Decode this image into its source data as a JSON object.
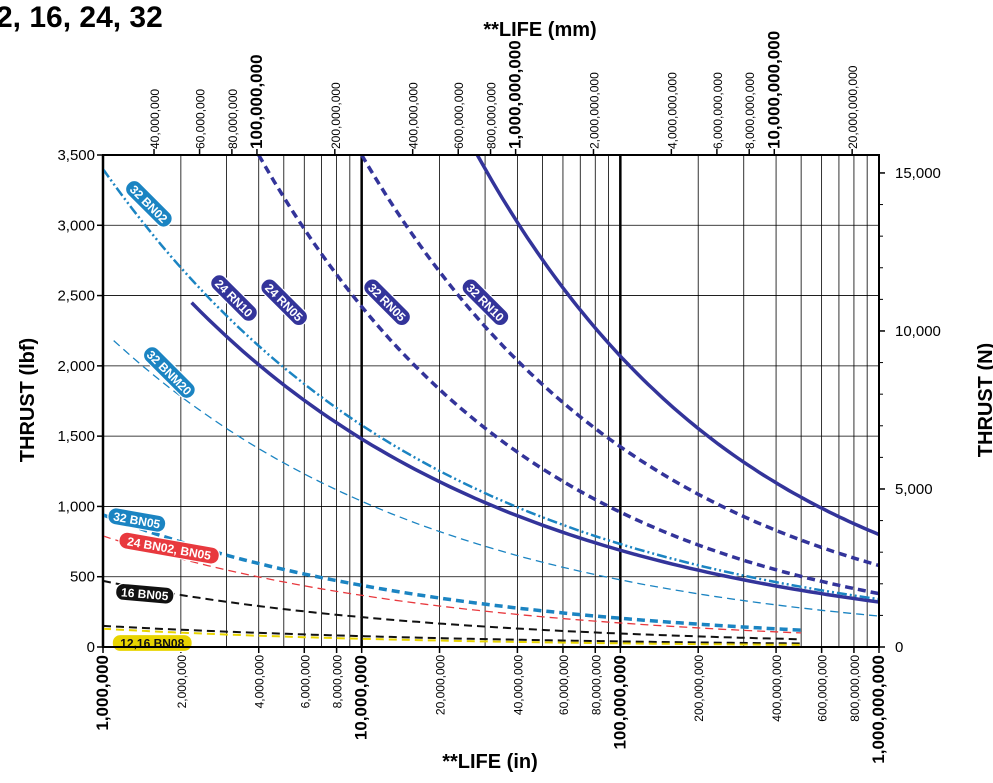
{
  "title": "2, 16, 24, 32",
  "chart_data": {
    "type": "line",
    "xlabel_bottom": "**LIFE (in)",
    "xlabel_top": "**LIFE (mm)",
    "ylabel_left": "THRUST (lbf)",
    "ylabel_right": "THRUST (N)",
    "x_scale": "log",
    "xlim": [
      1000000,
      1000000000
    ],
    "ylim": [
      0,
      3500
    ],
    "grid": true,
    "bottom_ticks": [
      {
        "value": 1000000,
        "label": "1,000,000",
        "major": true
      },
      {
        "value": 2000000,
        "label": "2,000,000",
        "major": false
      },
      {
        "value": 4000000,
        "label": "4,000,000",
        "major": false
      },
      {
        "value": 6000000,
        "label": "6,000,000",
        "major": false
      },
      {
        "value": 8000000,
        "label": "8,000,000",
        "major": false
      },
      {
        "value": 10000000,
        "label": "10,000,000",
        "major": true
      },
      {
        "value": 20000000,
        "label": "20,000,000",
        "major": false
      },
      {
        "value": 40000000,
        "label": "40,000,000",
        "major": false
      },
      {
        "value": 60000000,
        "label": "60,000,000",
        "major": false
      },
      {
        "value": 80000000,
        "label": "80,000,000",
        "major": false
      },
      {
        "value": 100000000,
        "label": "100,000,000",
        "major": true
      },
      {
        "value": 200000000,
        "label": "200,000,000",
        "major": false
      },
      {
        "value": 400000000,
        "label": "400,000,000",
        "major": false
      },
      {
        "value": 600000000,
        "label": "600,000,000",
        "major": false
      },
      {
        "value": 800000000,
        "label": "800,000,000",
        "major": false
      },
      {
        "value": 1000000000,
        "label": "1,000,000,000",
        "major": true
      }
    ],
    "top_ticks": [
      {
        "value": 40000000,
        "label": "40,000,000",
        "major": false
      },
      {
        "value": 60000000,
        "label": "60,000,000",
        "major": false
      },
      {
        "value": 80000000,
        "label": "80,000,000",
        "major": false
      },
      {
        "value": 100000000,
        "label": "100,000,000",
        "major": true
      },
      {
        "value": 200000000,
        "label": "200,000,000",
        "major": false
      },
      {
        "value": 400000000,
        "label": "400,000,000",
        "major": false
      },
      {
        "value": 600000000,
        "label": "600,000,000",
        "major": false
      },
      {
        "value": 800000000,
        "label": "800,000,000",
        "major": false
      },
      {
        "value": 1000000000,
        "label": "1,000,000,000",
        "major": true
      },
      {
        "value": 2000000000,
        "label": "2,000,000,000",
        "major": false
      },
      {
        "value": 4000000000,
        "label": "4,000,000,000",
        "major": false
      },
      {
        "value": 6000000000,
        "label": "6,000,000,000",
        "major": false
      },
      {
        "value": 8000000000,
        "label": "8,000,000,000",
        "major": false
      },
      {
        "value": 10000000000,
        "label": "10,000,000,000",
        "major": true
      },
      {
        "value": 20000000000,
        "label": "20,000,000,000",
        "major": false
      }
    ],
    "left_ticks": [
      {
        "value": 0,
        "label": "0"
      },
      {
        "value": 500,
        "label": "500"
      },
      {
        "value": 1000,
        "label": "1,000"
      },
      {
        "value": 1500,
        "label": "1,500"
      },
      {
        "value": 2000,
        "label": "2,000"
      },
      {
        "value": 2500,
        "label": "2,500"
      },
      {
        "value": 3000,
        "label": "3,000"
      },
      {
        "value": 3500,
        "label": "3,500"
      }
    ],
    "right_ticks": [
      {
        "value": 0,
        "label": "0"
      },
      {
        "value": 5000,
        "label": "5,000"
      },
      {
        "value": 10000,
        "label": "10,000"
      },
      {
        "value": 15000,
        "label": "15,000"
      }
    ],
    "series": [
      {
        "name": "32 RN10",
        "color": "#33349a",
        "style": "solid",
        "width": 3.5,
        "x": [
          28000000,
          1000000000
        ],
        "y": [
          3500,
          800
        ]
      },
      {
        "name": "32 RN05",
        "color": "#33349a",
        "style": "dash",
        "width": 3.5,
        "x": [
          10000000,
          1000000000
        ],
        "y": [
          3500,
          580
        ]
      },
      {
        "name": "24 RN05",
        "color": "#33349a",
        "style": "dash",
        "width": 3.5,
        "x": [
          4000000,
          1000000000
        ],
        "y": [
          3500,
          380
        ]
      },
      {
        "name": "24 RN10",
        "color": "#33349a",
        "style": "solid",
        "width": 3.5,
        "x": [
          2200000,
          1000000000
        ],
        "y": [
          2450,
          320
        ]
      },
      {
        "name": "32 BN02",
        "color": "#1b84c2",
        "style": "dashdotdot",
        "width": 2.5,
        "x": [
          1000000,
          1000000000
        ],
        "y": [
          3400,
          340
        ]
      },
      {
        "name": "32 BNM20",
        "color": "#1b84c2",
        "style": "dash",
        "width": 1.3,
        "x": [
          1100000,
          1000000000
        ],
        "y": [
          2180,
          220
        ]
      },
      {
        "name": "32 BN05",
        "color": "#1b84c2",
        "style": "dash",
        "width": 3.5,
        "x": [
          1000000,
          500000000
        ],
        "y": [
          940,
          120
        ]
      },
      {
        "name": "24 BN02, BN05",
        "color": "#e8393e",
        "style": "dash",
        "width": 1.3,
        "x": [
          1000000,
          500000000
        ],
        "y": [
          790,
          100
        ]
      },
      {
        "name": "16 BN05",
        "color": "#111111",
        "style": "dash",
        "width": 2,
        "x": [
          1000000,
          500000000
        ],
        "y": [
          470,
          55
        ]
      },
      {
        "name": "12,16 BN08",
        "color": "#111111",
        "style": "dash",
        "width": 2,
        "x": [
          1000000,
          500000000
        ],
        "y": [
          150,
          25
        ]
      },
      {
        "name": "12,16 BN08",
        "color": "#e8d400",
        "style": "dash",
        "width": 2,
        "x": [
          1000000,
          500000000
        ],
        "y": [
          130,
          15
        ]
      }
    ],
    "labels": [
      {
        "text": "32 RN10",
        "bg": "#33349a",
        "fg": "#ffffff",
        "x": 30000000,
        "y": 2450,
        "rot": 45
      },
      {
        "text": "32 RN05",
        "bg": "#33349a",
        "fg": "#ffffff",
        "x": 12500000,
        "y": 2450,
        "rot": 45
      },
      {
        "text": "24 RN05",
        "bg": "#33349a",
        "fg": "#ffffff",
        "x": 5000000,
        "y": 2450,
        "rot": 45
      },
      {
        "text": "24 RN10",
        "bg": "#33349a",
        "fg": "#ffffff",
        "x": 3200000,
        "y": 2480,
        "rot": 45
      },
      {
        "text": "32 BN02",
        "bg": "#1b84c2",
        "fg": "#ffffff",
        "x": 1500000,
        "y": 3150,
        "rot": 45
      },
      {
        "text": "32 BNM20",
        "bg": "#1b84c2",
        "fg": "#ffffff",
        "x": 1800000,
        "y": 1950,
        "rot": 45
      },
      {
        "text": "32 BN05",
        "bg": "#1b84c2",
        "fg": "#ffffff",
        "x": 1350000,
        "y": 900,
        "rot": 10
      },
      {
        "text": "24 BN02, BN05",
        "bg": "#e8393e",
        "fg": "#ffffff",
        "x": 1800000,
        "y": 700,
        "rot": 10
      },
      {
        "text": "16 BN05",
        "bg": "#111111",
        "fg": "#ffffff",
        "x": 1450000,
        "y": 375,
        "rot": 5
      },
      {
        "text": "12,16 BN08",
        "bg": "#e8d400",
        "fg": "#111111",
        "x": 1550000,
        "y": 25,
        "rot": 0
      }
    ]
  }
}
